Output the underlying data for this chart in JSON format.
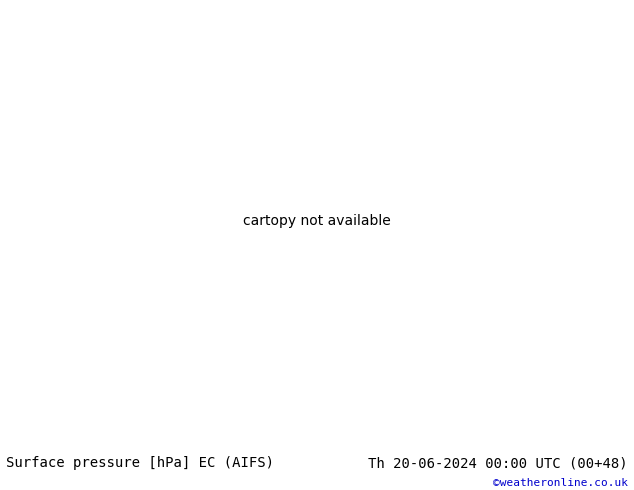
{
  "title_left": "Surface pressure [hPa] EC (AIFS)",
  "title_right": "Th 20-06-2024 00:00 UTC (00+48)",
  "copyright": "©weatheronline.co.uk",
  "land_color": "#c8e8a0",
  "sea_color": "#c8dff0",
  "mountain_color": "#c0c0c0",
  "border_color": "#808080",
  "coast_color": "#808080",
  "lake_color": "#c8dff0",
  "isobar_blue": "#0000cc",
  "isobar_black": "#000000",
  "isobar_red": "#cc0000",
  "label_fs": 6.5,
  "title_fs": 10,
  "copy_fs": 8,
  "copy_color": "#0000cc",
  "fig_w": 6.34,
  "fig_h": 4.9,
  "dpi": 100,
  "extent": [
    20,
    115,
    5,
    55
  ]
}
